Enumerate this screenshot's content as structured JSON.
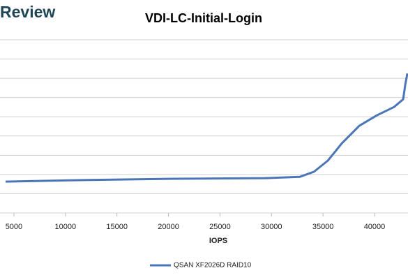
{
  "header": {
    "brand": "Review"
  },
  "chart_data": {
    "type": "line",
    "title": "VDI-LC-Initial-Login",
    "x_label": "IOPS",
    "series": [
      {
        "name": "QSAN XF2026D RAID10",
        "color": "#4a76b8",
        "x": [
          4190,
          10420,
          20580,
          29380,
          32760,
          34120,
          35470,
          36830,
          38520,
          40210,
          41900,
          42780,
          42990,
          43190
        ],
        "values": [
          1.63,
          1.7,
          1.78,
          1.81,
          1.88,
          2.14,
          2.72,
          3.62,
          4.53,
          5.07,
          5.51,
          5.91,
          6.7,
          7.25
        ]
      }
    ],
    "xlim": [
      3650,
      43250
    ],
    "xticks": [
      5000,
      10000,
      15000,
      20000,
      25000,
      30000,
      35000,
      40000
    ],
    "ylim": [
      0,
      9
    ],
    "yticks": [
      0,
      1,
      2,
      3,
      4,
      5,
      6,
      7,
      8,
      9
    ],
    "ytick_labels": false,
    "grid": true,
    "legend": "bottom"
  }
}
